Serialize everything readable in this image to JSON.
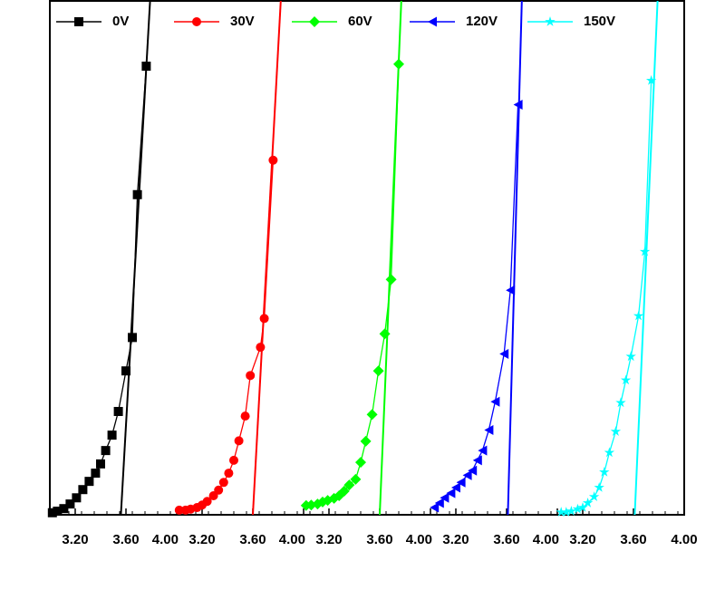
{
  "chart_data": [
    {
      "type": "line",
      "xlim": [
        3.0,
        4.0
      ],
      "ylim": [
        0,
        100
      ],
      "xticks": [
        {
          "value": 3.2,
          "label": "3.20"
        },
        {
          "value": 3.6,
          "label": "3.60"
        },
        {
          "value": 4.0,
          "label": "4.00"
        }
      ],
      "series": [
        {
          "name": "0V",
          "color": "#000000",
          "marker": "square",
          "x": [
            3.02,
            3.06,
            3.11,
            3.16,
            3.21,
            3.26,
            3.31,
            3.36,
            3.4,
            3.44,
            3.49,
            3.54,
            3.6,
            3.65,
            3.69,
            3.76
          ],
          "values": [
            0.4,
            0.7,
            1.2,
            2.1,
            3.3,
            4.9,
            6.5,
            8.1,
            9.9,
            12.5,
            15.5,
            20.1,
            28.0,
            34.5,
            62.3,
            87.3
          ]
        }
      ],
      "fit": {
        "x": [
          3.56,
          3.79
        ],
        "values": [
          0,
          100
        ]
      }
    },
    {
      "type": "line",
      "xlim": [
        3.0,
        4.0
      ],
      "ylim": [
        0,
        100
      ],
      "xticks": [
        {
          "value": 3.2,
          "label": "3.20"
        },
        {
          "value": 3.6,
          "label": "3.60"
        },
        {
          "value": 4.0,
          "label": "4.00"
        }
      ],
      "series": [
        {
          "name": "30V",
          "color": "#ff0000",
          "marker": "circle",
          "x": [
            3.02,
            3.07,
            3.11,
            3.16,
            3.2,
            3.24,
            3.29,
            3.33,
            3.37,
            3.41,
            3.45,
            3.49,
            3.54,
            3.58,
            3.66,
            3.69,
            3.76
          ],
          "values": [
            0.9,
            0.9,
            1.1,
            1.4,
            1.9,
            2.6,
            3.7,
            4.8,
            6.3,
            8.1,
            10.6,
            14.4,
            19.2,
            27.1,
            32.6,
            38.2,
            69.0
          ]
        }
      ],
      "fit": {
        "x": [
          3.6,
          3.82
        ],
        "values": [
          0,
          100
        ]
      }
    },
    {
      "type": "line",
      "xlim": [
        3.0,
        4.0
      ],
      "ylim": [
        0,
        100
      ],
      "xticks": [
        {
          "value": 3.2,
          "label": "3.20"
        },
        {
          "value": 3.6,
          "label": "3.60"
        },
        {
          "value": 4.0,
          "label": "4.00"
        }
      ],
      "series": [
        {
          "name": "60V",
          "color": "#00ff00",
          "marker": "diamond",
          "x": [
            3.02,
            3.06,
            3.11,
            3.15,
            3.19,
            3.24,
            3.28,
            3.32,
            3.36,
            3.41,
            3.45,
            3.49,
            3.54,
            3.59,
            3.64,
            3.69,
            3.75
          ],
          "values": [
            1.8,
            1.9,
            2.1,
            2.5,
            2.8,
            3.2,
            3.7,
            4.6,
            5.8,
            6.9,
            10.2,
            14.3,
            19.5,
            28.0,
            35.2,
            45.8,
            87.7
          ]
        }
      ],
      "fit": {
        "x": [
          3.6,
          3.77
        ],
        "values": [
          0,
          100
        ]
      }
    },
    {
      "type": "line",
      "xlim": [
        3.0,
        4.0
      ],
      "ylim": [
        0,
        100
      ],
      "xticks": [
        {
          "value": 3.2,
          "label": "3.20"
        },
        {
          "value": 3.6,
          "label": "3.60"
        },
        {
          "value": 4.0,
          "label": "4.00"
        }
      ],
      "series": [
        {
          "name": "120V",
          "color": "#0000ff",
          "marker": "triangle-left",
          "x": [
            3.03,
            3.07,
            3.11,
            3.16,
            3.2,
            3.24,
            3.29,
            3.33,
            3.37,
            3.41,
            3.46,
            3.51,
            3.58,
            3.63,
            3.69
          ],
          "values": [
            1.4,
            2.3,
            3.3,
            4.2,
            5.3,
            6.3,
            7.7,
            8.6,
            10.6,
            12.5,
            16.5,
            22.0,
            31.3,
            43.7,
            79.8
          ]
        }
      ],
      "fit": {
        "x": [
          3.61,
          3.72
        ],
        "values": [
          0,
          100
        ]
      }
    },
    {
      "type": "line",
      "xlim": [
        3.0,
        4.0
      ],
      "ylim": [
        0,
        100
      ],
      "xticks": [
        {
          "value": 3.2,
          "label": "3.20"
        },
        {
          "value": 3.6,
          "label": "3.60"
        },
        {
          "value": 4.0,
          "label": "4.00"
        }
      ],
      "series": [
        {
          "name": "150V",
          "color": "#00ffff",
          "marker": "star",
          "x": [
            3.03,
            3.07,
            3.11,
            3.16,
            3.2,
            3.24,
            3.29,
            3.33,
            3.37,
            3.41,
            3.46,
            3.5,
            3.54,
            3.58,
            3.64,
            3.69,
            3.74
          ],
          "values": [
            0.5,
            0.5,
            0.7,
            1.1,
            1.4,
            2.3,
            3.5,
            5.3,
            8.3,
            12.1,
            16.2,
            21.8,
            26.2,
            30.8,
            38.7,
            51.2,
            84.5
          ]
        }
      ],
      "fit": {
        "x": [
          3.61,
          3.79
        ],
        "values": [
          0,
          100
        ]
      }
    }
  ]
}
